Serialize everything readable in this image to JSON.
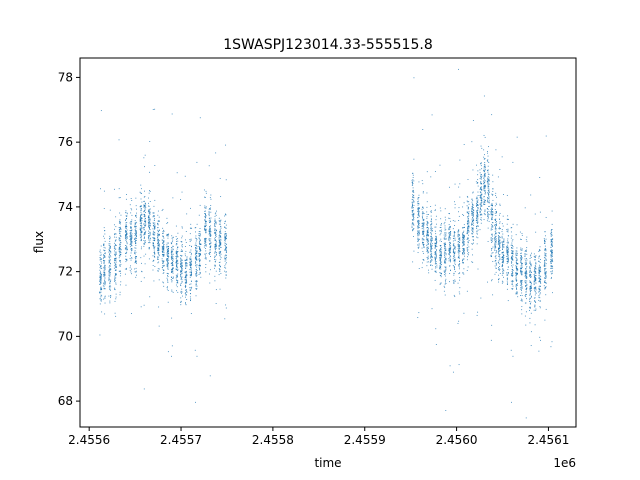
{
  "chart_data": {
    "type": "scatter",
    "title": "1SWASPJ123014.33-555515.8",
    "xlabel": "time",
    "ylabel": "flux",
    "x_offset_label": "1e6",
    "xlim": [
      2455590,
      2456130
    ],
    "ylim": [
      67.2,
      78.6
    ],
    "x_ticks": [
      2455600,
      2455700,
      2455800,
      2455900,
      2456000,
      2456100
    ],
    "x_tick_labels": [
      "2.4556",
      "2.4557",
      "2.4558",
      "2.4559",
      "2.4560",
      "2.4561"
    ],
    "y_ticks": [
      68,
      70,
      72,
      74,
      76,
      78
    ],
    "y_tick_labels": [
      "68",
      "70",
      "72",
      "74",
      "76",
      "78"
    ],
    "grid": false,
    "legend": "none",
    "marker_color": "#1f77b4",
    "series": [
      {
        "nights": [
          [
            2455612,
            71.9,
            0.5
          ],
          [
            2455616,
            72.1,
            0.5
          ],
          [
            2455622,
            72.2,
            0.45
          ],
          [
            2455628,
            72.3,
            0.5
          ],
          [
            2455633,
            72.8,
            0.5
          ],
          [
            2455640,
            73.0,
            0.5
          ],
          [
            2455645,
            73.0,
            0.5
          ],
          [
            2455650,
            72.9,
            0.5
          ],
          [
            2455656,
            73.4,
            0.5
          ],
          [
            2455660,
            73.6,
            0.55
          ],
          [
            2455665,
            73.5,
            0.45
          ],
          [
            2455670,
            73.1,
            0.45
          ],
          [
            2455675,
            72.9,
            0.4
          ],
          [
            2455680,
            72.6,
            0.4
          ],
          [
            2455685,
            72.5,
            0.4
          ],
          [
            2455690,
            72.3,
            0.4
          ],
          [
            2455695,
            72.2,
            0.45
          ],
          [
            2455700,
            72.1,
            0.5
          ],
          [
            2455705,
            72.0,
            0.5
          ],
          [
            2455710,
            72.1,
            0.5
          ],
          [
            2455716,
            72.3,
            0.45
          ],
          [
            2455720,
            72.6,
            0.45
          ],
          [
            2455726,
            73.2,
            0.45
          ],
          [
            2455731,
            73.2,
            0.45
          ],
          [
            2455737,
            73.0,
            0.45
          ],
          [
            2455742,
            72.9,
            0.45
          ],
          [
            2455748,
            72.9,
            0.45
          ],
          [
            2455952,
            74.0,
            0.45
          ],
          [
            2455958,
            73.5,
            0.45
          ],
          [
            2455963,
            73.3,
            0.45
          ],
          [
            2455968,
            73.1,
            0.45
          ],
          [
            2455972,
            72.9,
            0.45
          ],
          [
            2455977,
            72.7,
            0.45
          ],
          [
            2455982,
            72.6,
            0.45
          ],
          [
            2455987,
            72.6,
            0.45
          ],
          [
            2455992,
            72.8,
            0.45
          ],
          [
            2455997,
            72.7,
            0.5
          ],
          [
            2456002,
            72.6,
            0.5
          ],
          [
            2456007,
            72.9,
            0.45
          ],
          [
            2456012,
            73.3,
            0.45
          ],
          [
            2456017,
            73.6,
            0.5
          ],
          [
            2456022,
            73.9,
            0.5
          ],
          [
            2456026,
            74.4,
            0.5
          ],
          [
            2456030,
            74.7,
            0.5
          ],
          [
            2456034,
            74.4,
            0.55
          ],
          [
            2456038,
            73.6,
            0.55
          ],
          [
            2456042,
            73.1,
            0.55
          ],
          [
            2456046,
            72.8,
            0.5
          ],
          [
            2456050,
            72.6,
            0.45
          ],
          [
            2456055,
            72.5,
            0.45
          ],
          [
            2456060,
            72.3,
            0.45
          ],
          [
            2456065,
            72.0,
            0.45
          ],
          [
            2456070,
            71.9,
            0.45
          ],
          [
            2456075,
            71.9,
            0.45
          ],
          [
            2456080,
            71.7,
            0.45
          ],
          [
            2456085,
            71.8,
            0.45
          ],
          [
            2456090,
            71.9,
            0.4
          ],
          [
            2456096,
            72.2,
            0.45
          ],
          [
            2456103,
            72.6,
            0.4
          ]
        ]
      }
    ]
  }
}
